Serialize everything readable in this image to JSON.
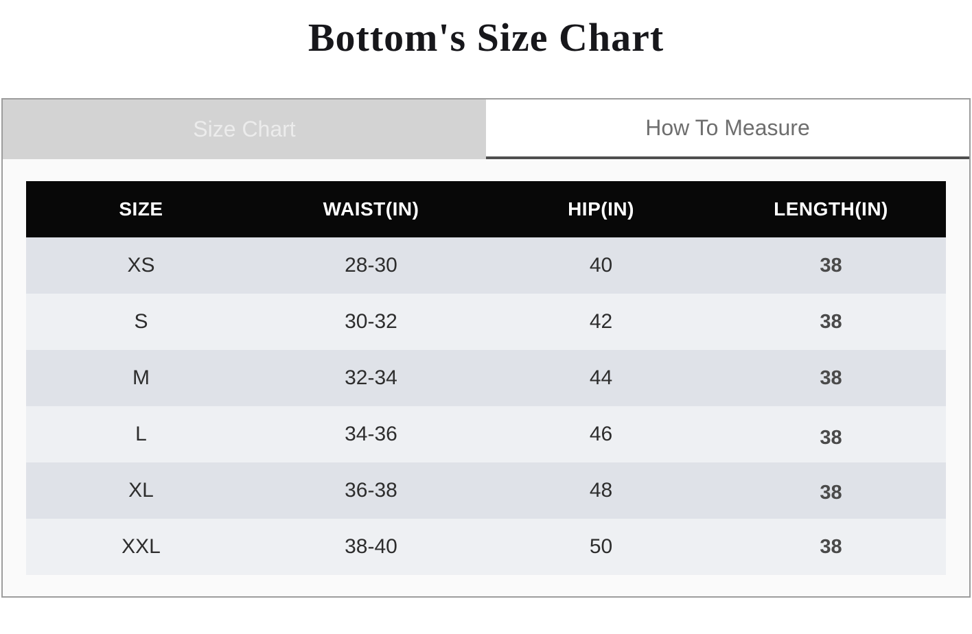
{
  "page": {
    "title": "Bottom's Size Chart"
  },
  "tabs": {
    "size_chart": {
      "label": "Size Chart",
      "active": true
    },
    "how_to_measure": {
      "label": "How To Measure",
      "active": false
    }
  },
  "table": {
    "columns": [
      "SIZE",
      "WAIST(IN)",
      "HIP(IN)",
      "LENGTH(IN)"
    ],
    "rows": [
      {
        "size": "XS",
        "waist": "28-30",
        "hip": "40",
        "length": "38"
      },
      {
        "size": "S",
        "waist": "30-32",
        "hip": "42",
        "length": "38"
      },
      {
        "size": "M",
        "waist": "32-34",
        "hip": "44",
        "length": "38"
      },
      {
        "size": "L",
        "waist": "34-36",
        "hip": "46",
        "length": "38"
      },
      {
        "size": "XL",
        "waist": "36-38",
        "hip": "48",
        "length": "38"
      },
      {
        "size": "XXL",
        "waist": "38-40",
        "hip": "50",
        "length": "38"
      }
    ]
  },
  "colors": {
    "header_bg": "#080808",
    "header_text": "#ffffff",
    "row_odd_bg": "#dfe2e8",
    "row_even_bg": "#eef0f3",
    "active_tab_bg": "#d3d3d3",
    "active_tab_text": "#ececec",
    "inactive_tab_bg": "#ffffff",
    "inactive_tab_text": "#6e6e6e",
    "tab_underline": "#4f4f4f",
    "panel_bg": "#fafafa",
    "panel_border": "#9c9c9c",
    "cell_text": "#2d2d2d",
    "length_text": "#4a4a4a",
    "title_text": "#17171b"
  }
}
